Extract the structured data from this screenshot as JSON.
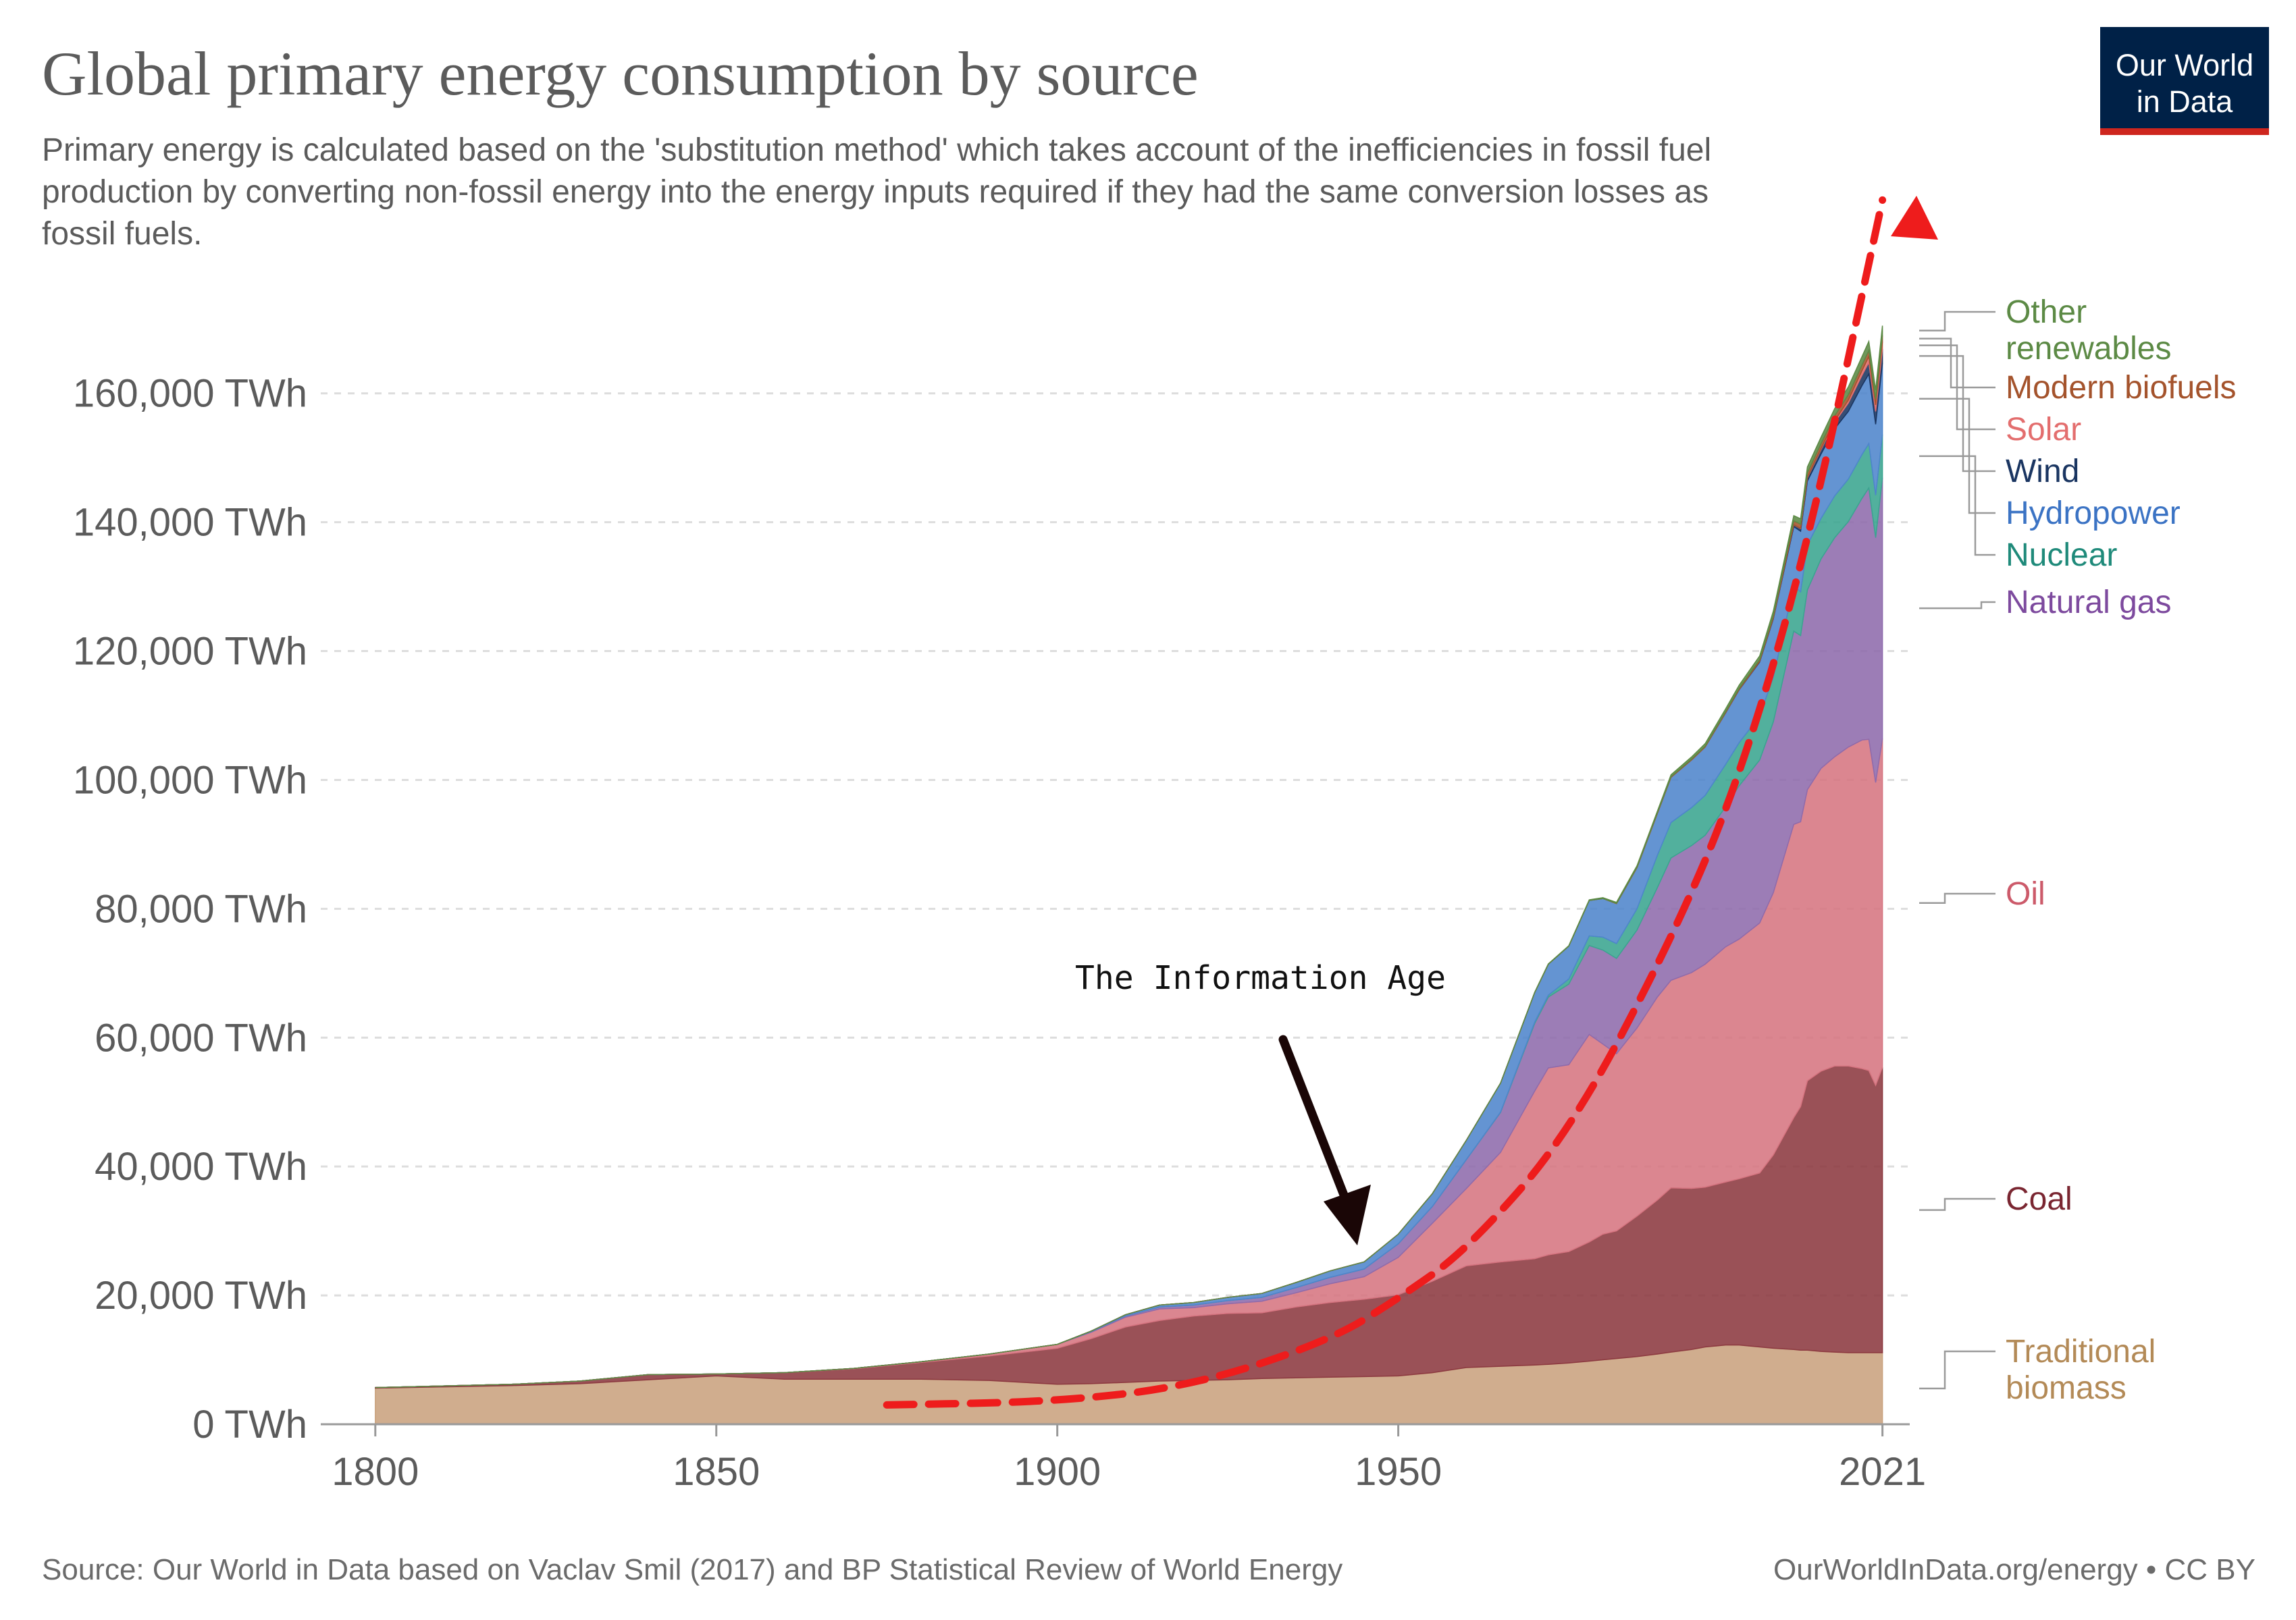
{
  "chart_data": {
    "type": "area",
    "stacked": true,
    "title": "Global primary energy consumption by source",
    "subtitle_lines": [
      "Primary energy is calculated based on the 'substitution method' which takes account of the inefficiencies in fossil fuel",
      "production by converting non-fossil energy into the energy inputs required if they had the same conversion losses as",
      "fossil fuels."
    ],
    "x": [
      1800,
      1820,
      1830,
      1840,
      1850,
      1860,
      1870,
      1880,
      1890,
      1900,
      1905,
      1910,
      1915,
      1920,
      1925,
      1930,
      1935,
      1940,
      1945,
      1950,
      1955,
      1960,
      1965,
      1970,
      1972,
      1975,
      1978,
      1980,
      1982,
      1985,
      1988,
      1990,
      1993,
      1995,
      1998,
      2000,
      2003,
      2005,
      2008,
      2009,
      2010,
      2012,
      2014,
      2016,
      2018,
      2019,
      2020,
      2021
    ],
    "series": [
      {
        "name": "Traditional biomass",
        "color": "#c9a27e",
        "values": [
          5600,
          6000,
          6300,
          6900,
          7500,
          7000,
          7000,
          7000,
          6800,
          6200,
          6300,
          6500,
          6700,
          6800,
          6900,
          7100,
          7200,
          7300,
          7400,
          7500,
          8000,
          8800,
          9000,
          9200,
          9300,
          9500,
          9800,
          10000,
          10200,
          10500,
          10900,
          11200,
          11600,
          12000,
          12300,
          12300,
          12000,
          11800,
          11600,
          11500,
          11500,
          11300,
          11200,
          11100,
          11100,
          11100,
          11100,
          11100
        ]
      },
      {
        "name": "Coal",
        "color": "#8c3940",
        "values": [
          100,
          200,
          400,
          800,
          300,
          1000,
          1600,
          2600,
          3800,
          5600,
          7000,
          8600,
          9400,
          10000,
          10300,
          10200,
          11000,
          11600,
          12000,
          12600,
          14200,
          15800,
          16200,
          16500,
          17000,
          17300,
          18500,
          19500,
          19800,
          21800,
          23900,
          25500,
          25000,
          24800,
          25300,
          25800,
          27000,
          30000,
          36000,
          37800,
          41800,
          43500,
          44400,
          44500,
          44100,
          43800,
          41500,
          44300
        ]
      },
      {
        "name": "Oil",
        "color": "#d67581",
        "values": [
          0,
          0,
          0,
          0,
          0,
          10,
          50,
          100,
          300,
          600,
          1000,
          1500,
          1800,
          1300,
          1500,
          1800,
          2200,
          2900,
          3500,
          5800,
          9000,
          12000,
          17000,
          26000,
          29000,
          29000,
          32200,
          29500,
          27500,
          29200,
          31500,
          32200,
          33500,
          34600,
          36500,
          37200,
          38800,
          40700,
          45500,
          44200,
          45200,
          47000,
          48000,
          49500,
          51000,
          51400,
          47000,
          51000
        ]
      },
      {
        "name": "Natural gas",
        "color": "#8e6bac",
        "values": [
          0,
          0,
          0,
          0,
          0,
          0,
          0,
          0,
          0,
          0,
          100,
          200,
          300,
          400,
          500,
          600,
          800,
          1000,
          1200,
          2100,
          2600,
          4500,
          6200,
          10500,
          11000,
          12500,
          13800,
          14600,
          14800,
          15200,
          17000,
          19000,
          19700,
          20000,
          21700,
          23800,
          25300,
          26500,
          30000,
          28900,
          31000,
          32500,
          34000,
          35000,
          37500,
          39000,
          38000,
          40500
        ]
      },
      {
        "name": "Nuclear",
        "color": "#3aa590",
        "values": [
          0,
          0,
          0,
          0,
          0,
          0,
          0,
          0,
          0,
          0,
          0,
          0,
          0,
          0,
          0,
          0,
          0,
          0,
          0,
          0,
          0,
          10,
          50,
          200,
          300,
          800,
          1500,
          2000,
          2300,
          3300,
          5000,
          5500,
          5900,
          6200,
          6600,
          6700,
          6800,
          7000,
          7000,
          6800,
          7000,
          6300,
          6500,
          6600,
          6800,
          6900,
          6600,
          6700
        ]
      },
      {
        "name": "Hydropower",
        "color": "#4e85cc",
        "values": [
          0,
          0,
          0,
          0,
          0,
          0,
          0,
          0,
          0,
          0,
          80,
          200,
          300,
          400,
          500,
          600,
          800,
          1000,
          1100,
          1500,
          2000,
          3000,
          4500,
          4600,
          4800,
          5100,
          5500,
          6000,
          6200,
          6400,
          6500,
          7000,
          7400,
          7500,
          8000,
          8200,
          8400,
          9000,
          9200,
          9400,
          9900,
          10000,
          10400,
          10500,
          10700,
          10800,
          11000,
          11100
        ]
      },
      {
        "name": "Wind",
        "color": "#1a3561",
        "values": [
          0,
          0,
          0,
          0,
          0,
          0,
          0,
          0,
          0,
          0,
          0,
          0,
          0,
          0,
          0,
          0,
          0,
          0,
          0,
          0,
          0,
          0,
          0,
          0,
          0,
          0,
          0,
          0,
          0,
          0,
          0,
          0,
          0,
          10,
          30,
          50,
          100,
          150,
          300,
          400,
          500,
          700,
          1000,
          1300,
          1600,
          1800,
          2000,
          2200
        ]
      },
      {
        "name": "Solar",
        "color": "#e36e6e",
        "values": [
          0,
          0,
          0,
          0,
          0,
          0,
          0,
          0,
          0,
          0,
          0,
          0,
          0,
          0,
          0,
          0,
          0,
          0,
          0,
          0,
          0,
          0,
          0,
          0,
          0,
          0,
          0,
          0,
          0,
          0,
          0,
          0,
          0,
          0,
          0,
          0,
          0,
          0,
          20,
          40,
          80,
          150,
          250,
          450,
          700,
          900,
          1000,
          1100
        ]
      },
      {
        "name": "Modern biofuels",
        "color": "#a4532c",
        "values": [
          0,
          0,
          0,
          0,
          0,
          0,
          0,
          0,
          0,
          0,
          0,
          0,
          0,
          0,
          0,
          0,
          0,
          0,
          0,
          0,
          0,
          0,
          0,
          0,
          0,
          0,
          0,
          0,
          50,
          80,
          100,
          100,
          110,
          120,
          150,
          180,
          250,
          350,
          600,
          650,
          700,
          750,
          800,
          850,
          900,
          950,
          900,
          1000
        ]
      },
      {
        "name": "Other renewables",
        "color": "#5c8a45",
        "values": [
          0,
          0,
          0,
          0,
          0,
          0,
          0,
          0,
          0,
          0,
          0,
          0,
          0,
          0,
          0,
          0,
          0,
          0,
          0,
          0,
          0,
          0,
          20,
          50,
          60,
          80,
          100,
          120,
          150,
          200,
          250,
          300,
          350,
          400,
          450,
          500,
          600,
          700,
          800,
          850,
          900,
          1000,
          1100,
          1200,
          1300,
          1400,
          1400,
          1500
        ]
      }
    ],
    "ylim": [
      0,
      176000
    ],
    "xlim": [
      1792,
      2025
    ],
    "y_ticks": [
      {
        "value": 0,
        "label": "0 TWh"
      },
      {
        "value": 20000,
        "label": "20,000 TWh"
      },
      {
        "value": 40000,
        "label": "40,000 TWh"
      },
      {
        "value": 60000,
        "label": "60,000 TWh"
      },
      {
        "value": 80000,
        "label": "80,000 TWh"
      },
      {
        "value": 100000,
        "label": "100,000 TWh"
      },
      {
        "value": 120000,
        "label": "120,000 TWh"
      },
      {
        "value": 140000,
        "label": "140,000 TWh"
      },
      {
        "value": 160000,
        "label": "160,000 TWh"
      }
    ],
    "x_ticks": [
      {
        "value": 1800,
        "label": "1800"
      },
      {
        "value": 1850,
        "label": "1850"
      },
      {
        "value": 1900,
        "label": "1900"
      },
      {
        "value": 1950,
        "label": "1950"
      },
      {
        "value": 2021,
        "label": "2021"
      }
    ],
    "grid": true,
    "legend_placement": "right",
    "legend": [
      {
        "series": "Other renewables",
        "lines": [
          "Other",
          "renewables"
        ],
        "color": "#5c8a45"
      },
      {
        "series": "Modern biofuels",
        "lines": [
          "Modern biofuels"
        ],
        "color": "#a4532c"
      },
      {
        "series": "Solar",
        "lines": [
          "Solar"
        ],
        "color": "#e36e6e"
      },
      {
        "series": "Wind",
        "lines": [
          "Wind"
        ],
        "color": "#1a3561"
      },
      {
        "series": "Hydropower",
        "lines": [
          "Hydropower"
        ],
        "color": "#3b73c4"
      },
      {
        "series": "Nuclear",
        "lines": [
          "Nuclear"
        ],
        "color": "#1f8a7a"
      },
      {
        "series": "Natural gas",
        "lines": [
          "Natural gas"
        ],
        "color": "#7d4a9e"
      },
      {
        "series": "Oil",
        "lines": [
          "Oil"
        ],
        "color": "#cc5a6a"
      },
      {
        "series": "Coal",
        "lines": [
          "Coal"
        ],
        "color": "#7a2631"
      },
      {
        "series": "Traditional biomass",
        "lines": [
          "Traditional",
          "biomass"
        ],
        "color": "#b38a57"
      }
    ],
    "annotations": {
      "information_age": {
        "text": "The Information Age",
        "arrow_from": [
          1876,
          59000
        ],
        "arrow_to": [
          1887,
          27000
        ]
      },
      "trend_arrow": {
        "description": "red dashed exponential curve",
        "color": "#ee1c1c",
        "points": [
          [
            1875,
            3000
          ],
          [
            1900,
            3500
          ],
          [
            1920,
            6000
          ],
          [
            1940,
            13000
          ],
          [
            1950,
            19500
          ],
          [
            1960,
            27000
          ],
          [
            1975,
            45000
          ],
          [
            1990,
            75000
          ],
          [
            2000,
            100000
          ],
          [
            2010,
            136000
          ],
          [
            2021,
            190000
          ]
        ]
      }
    }
  },
  "logo": {
    "line1": "Our World",
    "line2": "in Data",
    "bg": "#002147",
    "bar": "#ce261e"
  },
  "footer": {
    "source": "Source: Our World in Data based on Vaclav Smil (2017) and BP Statistical Review of World Energy",
    "license": "OurWorldInData.org/energy • CC BY"
  }
}
